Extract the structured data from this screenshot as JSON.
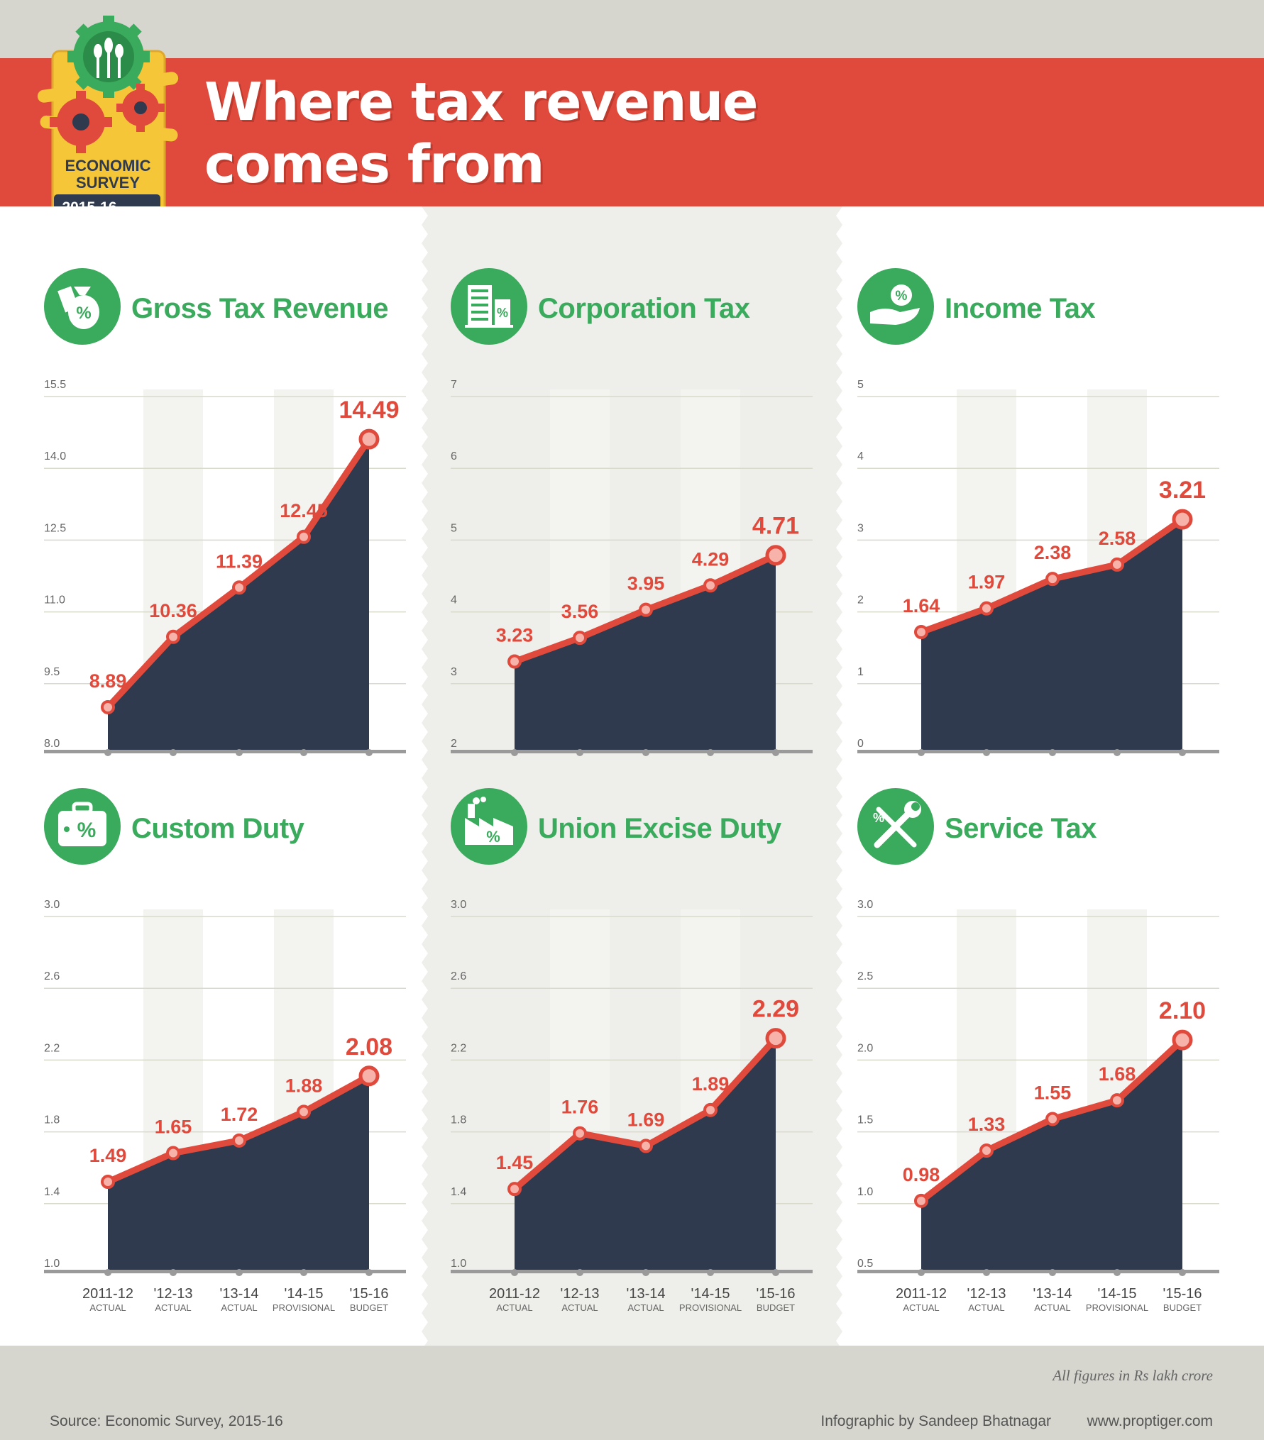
{
  "header": {
    "title_line1": "Where tax revenue",
    "title_line2": "comes from",
    "logo": {
      "line1": "ECONOMIC",
      "line2": "SURVEY",
      "year": "2015-16"
    }
  },
  "colors": {
    "banner": "#e04a3c",
    "accent_red": "#e04a3c",
    "icon_green": "#3aaa5c",
    "area_navy": "#2f3a4f",
    "axis_gray": "#9a9a9a"
  },
  "x_categories": [
    {
      "top": "2011-12",
      "bottom": "ACTUAL"
    },
    {
      "top": "'12-13",
      "bottom": "ACTUAL"
    },
    {
      "top": "'13-14",
      "bottom": "ACTUAL"
    },
    {
      "top": "'14-15",
      "bottom": "PROVISIONAL"
    },
    {
      "top": "'15-16",
      "bottom": "BUDGET"
    }
  ],
  "chart_data": [
    {
      "type": "area",
      "title": "Gross Tax Revenue",
      "icon": "money-bag-icon",
      "categories": [
        "2011-12",
        "'12-13",
        "'13-14",
        "'14-15",
        "'15-16"
      ],
      "values": [
        8.89,
        10.36,
        11.39,
        12.45,
        14.49
      ],
      "labels": [
        "8.89",
        "10.36",
        "11.39",
        "12.45",
        "14.49"
      ],
      "ylim": [
        8.0,
        15.5
      ],
      "yticks": [
        "8.0",
        "9.5",
        "11.0",
        "12.5",
        "14.0",
        "15.5"
      ]
    },
    {
      "type": "area",
      "title": "Corporation Tax",
      "icon": "office-building-icon",
      "categories": [
        "2011-12",
        "'12-13",
        "'13-14",
        "'14-15",
        "'15-16"
      ],
      "values": [
        3.23,
        3.56,
        3.95,
        4.29,
        4.71
      ],
      "labels": [
        "3.23",
        "3.56",
        "3.95",
        "4.29",
        "4.71"
      ],
      "ylim": [
        2,
        7
      ],
      "yticks": [
        "2",
        "3",
        "4",
        "5",
        "6",
        "7"
      ]
    },
    {
      "type": "area",
      "title": "Income Tax",
      "icon": "hand-percent-icon",
      "categories": [
        "2011-12",
        "'12-13",
        "'13-14",
        "'14-15",
        "'15-16"
      ],
      "values": [
        1.64,
        1.97,
        2.38,
        2.58,
        3.21
      ],
      "labels": [
        "1.64",
        "1.97",
        "2.38",
        "2.58",
        "3.21"
      ],
      "ylim": [
        0,
        5
      ],
      "yticks": [
        "0",
        "1",
        "2",
        "3",
        "4",
        "5"
      ]
    },
    {
      "type": "area",
      "title": "Custom Duty",
      "icon": "suitcase-icon",
      "categories": [
        "2011-12",
        "'12-13",
        "'13-14",
        "'14-15",
        "'15-16"
      ],
      "values": [
        1.49,
        1.65,
        1.72,
        1.88,
        2.08
      ],
      "labels": [
        "1.49",
        "1.65",
        "1.72",
        "1.88",
        "2.08"
      ],
      "ylim": [
        1.0,
        3.0
      ],
      "yticks": [
        "1.0",
        "1.4",
        "1.8",
        "2.2",
        "2.6",
        "3.0"
      ]
    },
    {
      "type": "area",
      "title": "Union Excise Duty",
      "icon": "factory-icon",
      "categories": [
        "2011-12",
        "'12-13",
        "'13-14",
        "'14-15",
        "'15-16"
      ],
      "values": [
        1.45,
        1.76,
        1.69,
        1.89,
        2.29
      ],
      "labels": [
        "1.45",
        "1.76",
        "1.69",
        "1.89",
        "2.29"
      ],
      "ylim": [
        1.0,
        3.0
      ],
      "yticks": [
        "1.0",
        "1.4",
        "1.8",
        "2.2",
        "2.6",
        "3.0"
      ]
    },
    {
      "type": "area",
      "title": "Service Tax",
      "icon": "tools-icon",
      "categories": [
        "2011-12",
        "'12-13",
        "'13-14",
        "'14-15",
        "'15-16"
      ],
      "values": [
        0.98,
        1.33,
        1.55,
        1.68,
        2.1
      ],
      "labels": [
        "0.98",
        "1.33",
        "1.55",
        "1.68",
        "2.10"
      ],
      "ylim": [
        0.5,
        3.0
      ],
      "yticks": [
        "0.5",
        "1.0",
        "1.5",
        "2.0",
        "2.5",
        "3.0"
      ]
    }
  ],
  "footer": {
    "units_note": "All figures in Rs lakh crore",
    "source": "Source: Economic Survey, 2015-16",
    "credit": "Infographic by Sandeep Bhatnagar",
    "website": "www.proptiger.com"
  }
}
